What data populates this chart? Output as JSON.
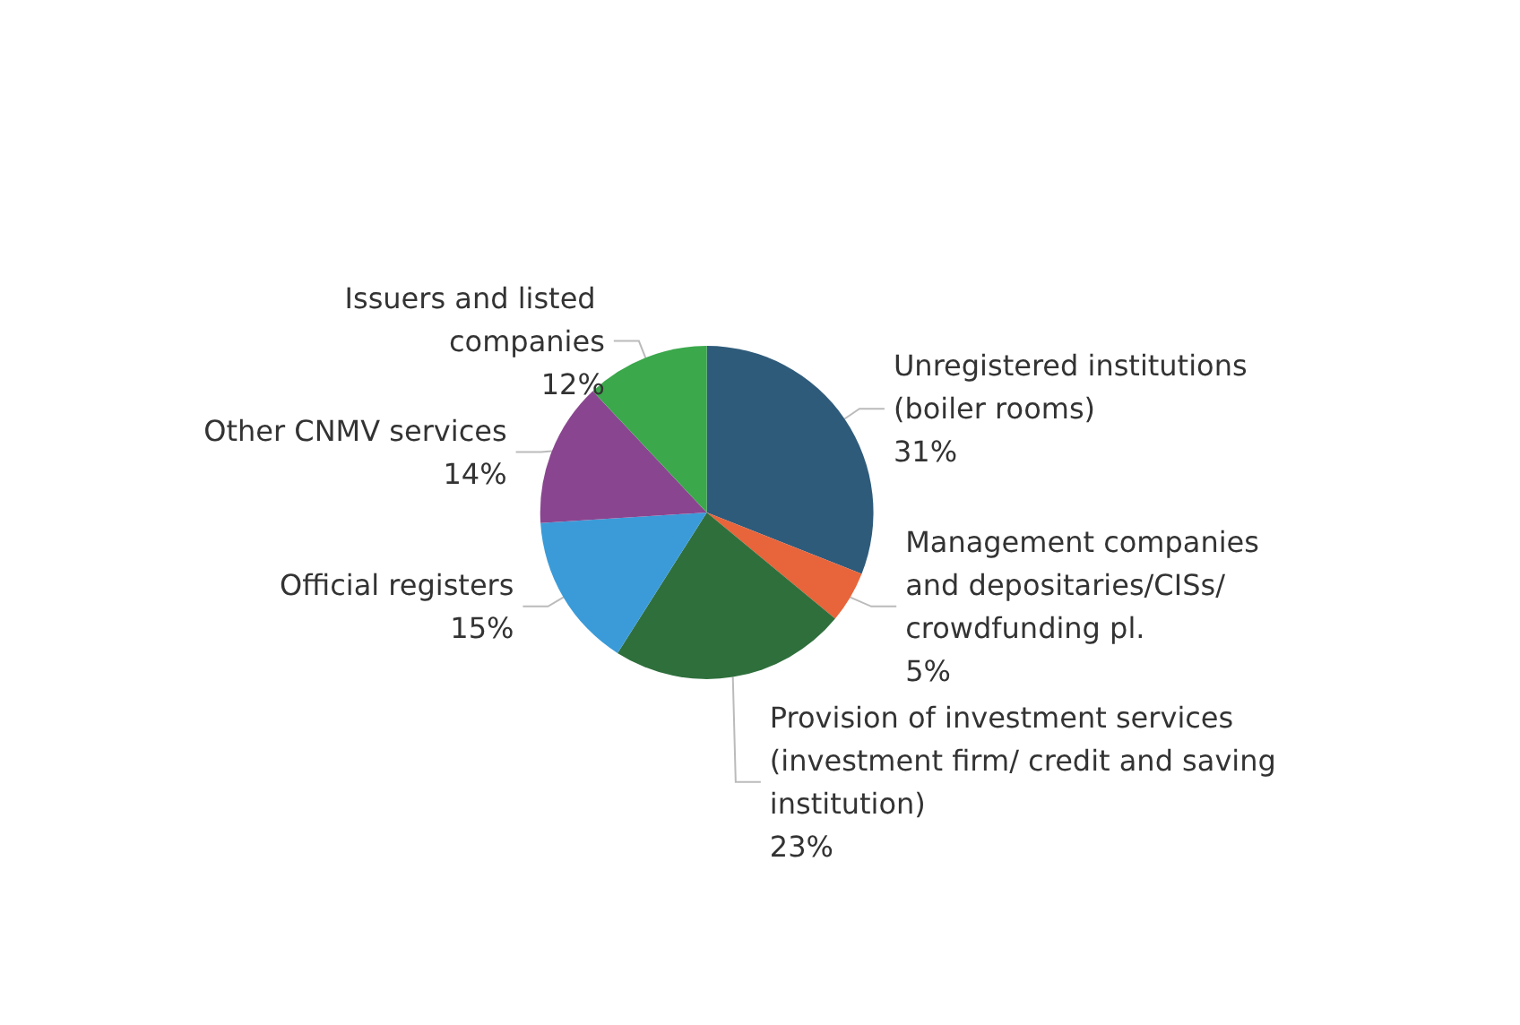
{
  "chart_data": {
    "type": "pie",
    "categories": [
      "Unregistered institutions (boiler rooms)",
      "Management companies and depositaries/CISs/ crowdfunding pl.",
      "Provision of investment services (investment firm/ credit and saving institution)",
      "Official registers",
      "Other CNMV services",
      "Issuers and listed companies"
    ],
    "values": [
      31,
      5,
      23,
      15,
      14,
      12
    ],
    "value_labels": [
      "31%",
      "5%",
      "23%",
      "15%",
      "14%",
      "12%"
    ],
    "colors": [
      "#2f5b7a",
      "#e8643a",
      "#2f6f3c",
      "#3b9bd8",
      "#8a4590",
      "#3aa84b"
    ]
  }
}
